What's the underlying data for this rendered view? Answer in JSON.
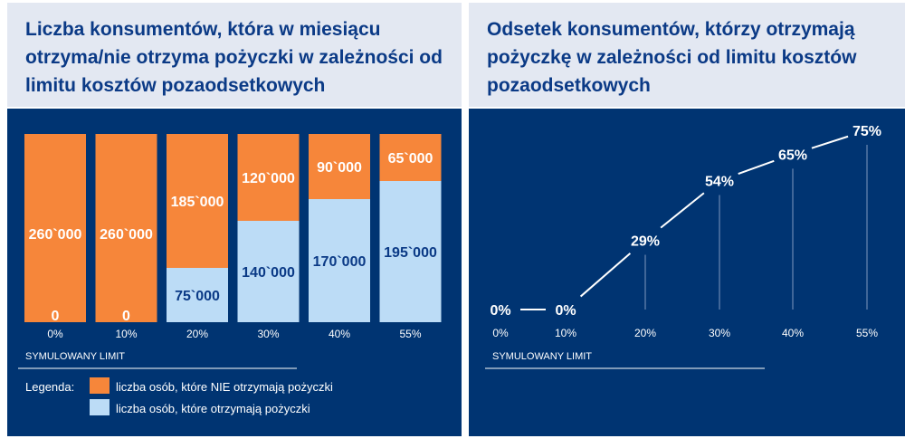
{
  "left": {
    "title": "Liczba konsumentów, która w miesiącu otrzyma/nie otrzyma pożyczki w zależności od limitu kosztów pozaodsetkowych",
    "axis_title": "SYMULOWANY LIMIT",
    "legend": {
      "label": "Legenda:",
      "items": [
        {
          "text": "liczba osób, które NIE otrzymają pożyczki",
          "color": "#f6863a"
        },
        {
          "text": "liczba osób, które otrzymają pożyczki",
          "color": "#bcdcf6"
        }
      ]
    }
  },
  "right": {
    "title": "Odsetek konsumentów, którzy otrzymają pożyczkę w zależności od limitu kosztów pozaodsetkowych",
    "axis_title": "SYMULOWANY LIMIT"
  },
  "colors": {
    "header_bg": "#e3e8f2",
    "title_text": "#0b3a86",
    "chart_bg": "#003472",
    "orange": "#f6863a",
    "light_blue": "#bcdcf6",
    "value_dark": "#0b3a86"
  },
  "chart_data": [
    {
      "type": "bar",
      "stacked": true,
      "title": "Liczba konsumentów, która w miesiącu otrzyma/nie otrzyma pożyczki w zależności od limitu kosztów pozaodsetkowych",
      "xlabel": "SYMULOWANY LIMIT",
      "categories": [
        "0%",
        "10%",
        "20%",
        "30%",
        "40%",
        "55%"
      ],
      "series": [
        {
          "name": "liczba osób, które otrzymają pożyczki",
          "values": [
            0,
            0,
            75000,
            140000,
            170000,
            195000
          ],
          "labels": [
            "0",
            "0",
            "75`000",
            "140`000",
            "170`000",
            "195`000"
          ]
        },
        {
          "name": "liczba osób, które NIE otrzymają pożyczki",
          "values": [
            260000,
            260000,
            185000,
            120000,
            90000,
            65000
          ],
          "labels": [
            "260`000",
            "260`000",
            "185`000",
            "120`000",
            "90`000",
            "65`000"
          ]
        }
      ],
      "ylim": [
        0,
        260000
      ]
    },
    {
      "type": "line",
      "title": "Odsetek konsumentów, którzy otrzymają pożyczkę w zależności od limitu kosztów pozaodsetkowych",
      "xlabel": "SYMULOWANY LIMIT",
      "categories": [
        "0%",
        "10%",
        "20%",
        "30%",
        "40%",
        "55%"
      ],
      "x": [
        0,
        10,
        20,
        30,
        40,
        55
      ],
      "values": [
        0,
        0,
        29,
        54,
        65,
        75
      ],
      "labels": [
        "0%",
        "0%",
        "29%",
        "54%",
        "65%",
        "75%"
      ],
      "ylim": [
        0,
        75
      ]
    }
  ]
}
